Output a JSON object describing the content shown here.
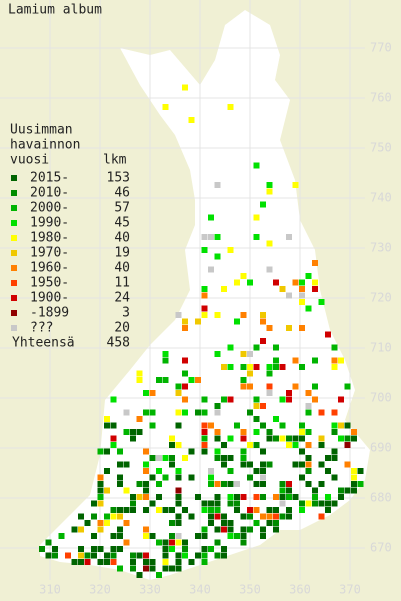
{
  "title": "Lamium album",
  "legend": {
    "heading": [
      "Uusimman",
      "havainnon",
      "vuosi"
    ],
    "count_heading": "lkm",
    "items": [
      {
        "label": "2015-",
        "count": 153,
        "color": "#006400"
      },
      {
        "label": "2010-",
        "count": 46,
        "color": "#008c00"
      },
      {
        "label": "2000-",
        "count": 57,
        "color": "#00b400"
      },
      {
        "label": "1990-",
        "count": 45,
        "color": "#00e000"
      },
      {
        "label": "1980-",
        "count": 40,
        "color": "#ffff00"
      },
      {
        "label": "1970-",
        "count": 19,
        "color": "#f0c800"
      },
      {
        "label": "1960-",
        "count": 40,
        "color": "#ff8000"
      },
      {
        "label": "1950-",
        "count": 11,
        "color": "#ff4000"
      },
      {
        "label": "1900-",
        "count": 24,
        "color": "#d00000"
      },
      {
        "label": "-1899",
        "count": 3,
        "color": "#900000"
      },
      {
        "label": "???",
        "count": 20,
        "color": "#c8c8c8"
      }
    ],
    "total_label": "Yhteensä",
    "total": 458
  },
  "x_axis": [
    310,
    320,
    330,
    340,
    350,
    360,
    370
  ],
  "y_axis": [
    770,
    760,
    750,
    740,
    730,
    720,
    710,
    700,
    690,
    680,
    670
  ]
}
